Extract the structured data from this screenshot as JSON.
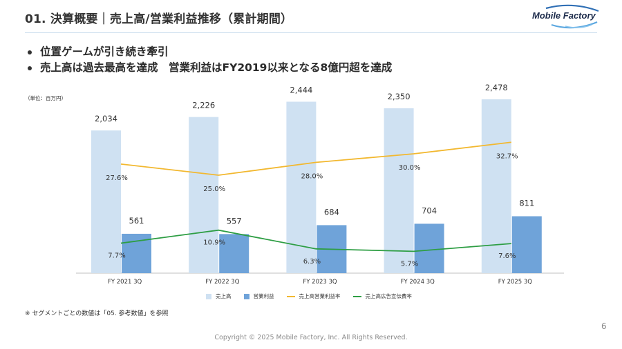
{
  "header": {
    "title": "01. 決算概要｜売上高/営業利益推移（累計期間）",
    "logo_text": "Mobile Factory"
  },
  "bullets": [
    "位置ゲームが引き続き牽引",
    "売上高は過去最高を達成　営業利益はFY2019以来となる8億円超を達成"
  ],
  "unit_label": "（単位：百万円）",
  "legend": {
    "sales": "売上高",
    "operating_income": "営業利益",
    "margin": "売上高営業利益率",
    "ad_ratio": "売上高広告宣伝費率"
  },
  "colors": {
    "sales": "#cfe1f2",
    "operating_income": "#6fa3d9",
    "margin": "#f2b830",
    "ad_ratio": "#2e9e44"
  },
  "chart_data": {
    "type": "bar",
    "categories": [
      "FY 2021 3Q",
      "FY 2022 3Q",
      "FY 2023 3Q",
      "FY 2024 3Q",
      "FY 2025 3Q"
    ],
    "series": [
      {
        "name": "売上高",
        "kind": "bar",
        "values": [
          2034,
          2226,
          2444,
          2350,
          2478
        ],
        "labels": [
          "2,034",
          "2,226",
          "2,444",
          "2,350",
          "2,478"
        ]
      },
      {
        "name": "営業利益",
        "kind": "bar",
        "values": [
          561,
          557,
          684,
          704,
          811
        ],
        "labels": [
          "561",
          "557",
          "684",
          "704",
          "811"
        ]
      },
      {
        "name": "売上高営業利益率",
        "kind": "line",
        "values": [
          27.6,
          25.0,
          28.0,
          30.0,
          32.7
        ],
        "labels": [
          "27.6%",
          "25.0%",
          "28.0%",
          "30.0%",
          "32.7%"
        ]
      },
      {
        "name": "売上高広告宣伝費率",
        "kind": "line",
        "values": [
          7.7,
          10.9,
          6.3,
          5.7,
          7.6
        ],
        "labels": [
          "7.7%",
          "10.9%",
          "6.3%",
          "5.7%",
          "7.6%"
        ]
      }
    ],
    "ylim_bars": [
      0,
      2700
    ],
    "ylim_pct": [
      0,
      44
    ]
  },
  "footnote": "※ セグメントごとの数値は「05. 参考数値」を参照",
  "page_number": "6",
  "copyright": "Copyright © 2025 Mobile Factory, Inc. All Rights Reserved."
}
